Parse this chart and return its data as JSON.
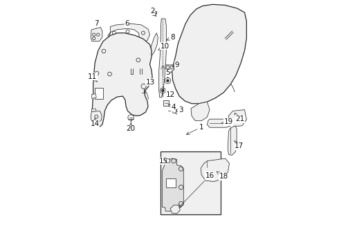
{
  "bg_color": "#ffffff",
  "line_color": "#2a2a2a",
  "fig_width": 4.9,
  "fig_height": 3.6,
  "dpi": 100,
  "label_fs": 7.5,
  "lw_main": 0.9,
  "lw_thin": 0.55,
  "part_labels": {
    "1": [
      3.85,
      4.55,
      4.55,
      4.9
    ],
    "2": [
      2.72,
      9.35,
      2.55,
      9.6
    ],
    "3": [
      3.38,
      5.58,
      3.7,
      5.58
    ],
    "4": [
      3.08,
      5.88,
      3.4,
      5.7
    ],
    "5": [
      3.18,
      6.78,
      3.18,
      7.1
    ],
    "6": [
      1.52,
      8.75,
      1.52,
      9.05
    ],
    "7": [
      0.28,
      8.7,
      0.28,
      9.05
    ],
    "8": [
      3.05,
      8.35,
      3.38,
      8.55
    ],
    "9": [
      3.25,
      7.28,
      3.55,
      7.42
    ],
    "10": [
      2.72,
      8.0,
      3.05,
      8.15
    ],
    "11": [
      0.32,
      6.65,
      0.15,
      6.9
    ],
    "12": [
      2.98,
      6.38,
      3.28,
      6.22
    ],
    "13": [
      2.18,
      6.55,
      2.48,
      6.72
    ],
    "14": [
      0.22,
      5.38,
      0.22,
      5.05
    ],
    "15": [
      3.22,
      3.85,
      3.05,
      3.55
    ],
    "16": [
      4.55,
      3.15,
      4.88,
      2.95
    ],
    "17": [
      5.82,
      4.38,
      6.05,
      4.12
    ],
    "18": [
      5.15,
      3.12,
      5.45,
      2.88
    ],
    "19": [
      5.35,
      4.92,
      5.65,
      5.08
    ],
    "20": [
      1.68,
      5.15,
      1.68,
      4.82
    ],
    "21": [
      5.82,
      5.45,
      6.08,
      5.22
    ]
  }
}
